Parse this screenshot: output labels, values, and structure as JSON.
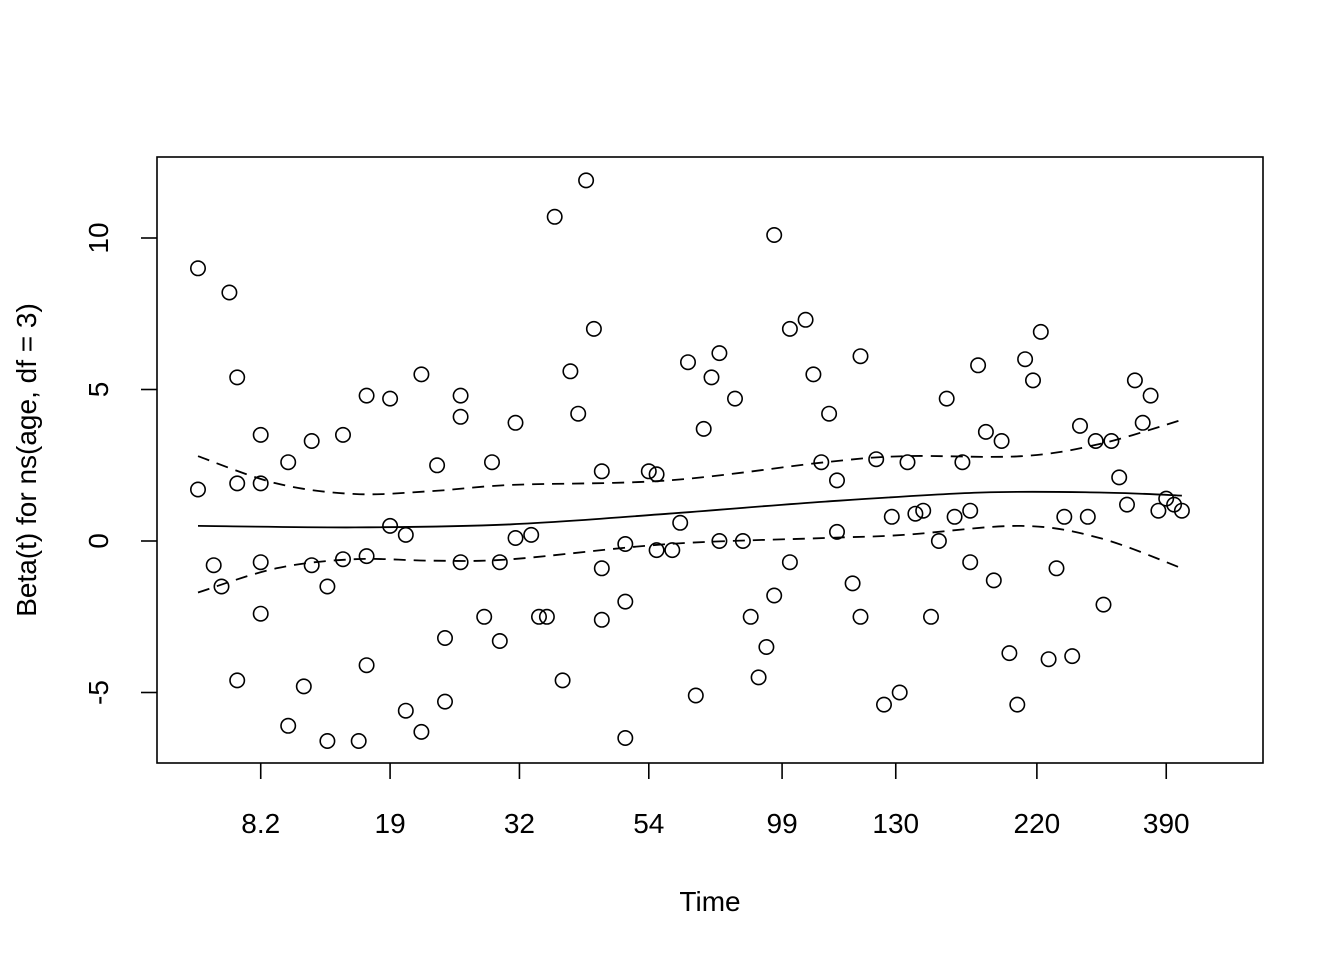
{
  "chart_data": {
    "type": "scatter",
    "title": "",
    "xlabel": "Time",
    "ylabel": "Beta(t) for ns(age, df = 3)",
    "x_scale": "transformed time (rank), labelled with original times",
    "x_tick_labels": [
      "8.2",
      "19",
      "32",
      "54",
      "99",
      "130",
      "220",
      "390"
    ],
    "y_ticks": [
      -5,
      0,
      5,
      10
    ],
    "y_tick_labels": [
      "-5",
      "0",
      "5",
      "10"
    ],
    "ylim": [
      -7.4,
      12.6
    ],
    "grid": false,
    "legend": "none",
    "points": [
      [
        1.0,
        1.7
      ],
      [
        1.0,
        9.0
      ],
      [
        1.4,
        -0.8
      ],
      [
        1.6,
        -1.5
      ],
      [
        1.8,
        8.2
      ],
      [
        2.0,
        1.9
      ],
      [
        2.0,
        5.4
      ],
      [
        2.0,
        -4.6
      ],
      [
        2.6,
        3.5
      ],
      [
        2.6,
        1.9
      ],
      [
        2.6,
        -0.7
      ],
      [
        2.6,
        -2.4
      ],
      [
        3.3,
        2.6
      ],
      [
        3.3,
        -6.1
      ],
      [
        3.7,
        -4.8
      ],
      [
        3.9,
        3.3
      ],
      [
        3.9,
        -0.8
      ],
      [
        4.3,
        -1.5
      ],
      [
        4.3,
        -6.6
      ],
      [
        4.7,
        3.5
      ],
      [
        4.7,
        -0.6
      ],
      [
        5.1,
        -6.6
      ],
      [
        5.3,
        4.8
      ],
      [
        5.3,
        -0.5
      ],
      [
        5.3,
        -4.1
      ],
      [
        5.9,
        4.7
      ],
      [
        5.9,
        0.5
      ],
      [
        6.3,
        0.2
      ],
      [
        6.3,
        -5.6
      ],
      [
        6.7,
        5.5
      ],
      [
        6.7,
        -6.3
      ],
      [
        7.1,
        2.5
      ],
      [
        7.3,
        -3.2
      ],
      [
        7.3,
        -5.3
      ],
      [
        7.7,
        4.8
      ],
      [
        7.7,
        4.1
      ],
      [
        7.7,
        -0.7
      ],
      [
        8.3,
        -2.5
      ],
      [
        8.5,
        2.6
      ],
      [
        8.7,
        -0.7
      ],
      [
        8.7,
        -3.3
      ],
      [
        9.1,
        3.9
      ],
      [
        9.1,
        0.1
      ],
      [
        9.5,
        0.2
      ],
      [
        9.7,
        -2.5
      ],
      [
        9.9,
        -2.5
      ],
      [
        10.1,
        10.7
      ],
      [
        10.3,
        -4.6
      ],
      [
        10.5,
        5.6
      ],
      [
        10.7,
        4.2
      ],
      [
        10.9,
        11.9
      ],
      [
        11.1,
        7.0
      ],
      [
        11.3,
        2.3
      ],
      [
        11.3,
        -0.9
      ],
      [
        11.3,
        -2.6
      ],
      [
        11.9,
        -0.1
      ],
      [
        11.9,
        -2.0
      ],
      [
        11.9,
        -6.5
      ],
      [
        12.5,
        2.3
      ],
      [
        12.7,
        2.2
      ],
      [
        12.7,
        -0.3
      ],
      [
        13.1,
        -0.3
      ],
      [
        13.3,
        0.6
      ],
      [
        13.5,
        5.9
      ],
      [
        13.7,
        -5.1
      ],
      [
        13.9,
        3.7
      ],
      [
        14.1,
        5.4
      ],
      [
        14.3,
        6.2
      ],
      [
        14.3,
        0.0
      ],
      [
        14.7,
        4.7
      ],
      [
        14.9,
        0.0
      ],
      [
        15.1,
        -2.5
      ],
      [
        15.3,
        -4.5
      ],
      [
        15.5,
        -3.5
      ],
      [
        15.7,
        10.1
      ],
      [
        15.7,
        -1.8
      ],
      [
        16.1,
        7.0
      ],
      [
        16.1,
        -0.7
      ],
      [
        16.5,
        7.3
      ],
      [
        16.7,
        5.5
      ],
      [
        16.9,
        2.6
      ],
      [
        17.1,
        4.2
      ],
      [
        17.3,
        2.0
      ],
      [
        17.3,
        0.3
      ],
      [
        17.7,
        -1.4
      ],
      [
        17.9,
        6.1
      ],
      [
        17.9,
        -2.5
      ],
      [
        18.3,
        2.7
      ],
      [
        18.5,
        -5.4
      ],
      [
        18.7,
        0.8
      ],
      [
        18.9,
        -5.0
      ],
      [
        19.1,
        2.6
      ],
      [
        19.3,
        0.9
      ],
      [
        19.5,
        1.0
      ],
      [
        19.7,
        -2.5
      ],
      [
        19.9,
        0.0
      ],
      [
        20.1,
        4.7
      ],
      [
        20.3,
        0.8
      ],
      [
        20.5,
        2.6
      ],
      [
        20.7,
        1.0
      ],
      [
        20.7,
        -0.7
      ],
      [
        20.9,
        5.8
      ],
      [
        21.1,
        3.6
      ],
      [
        21.3,
        -1.3
      ],
      [
        21.5,
        3.3
      ],
      [
        21.7,
        -3.7
      ],
      [
        21.9,
        -5.4
      ],
      [
        22.1,
        6.0
      ],
      [
        22.3,
        5.3
      ],
      [
        22.5,
        6.9
      ],
      [
        22.7,
        -3.9
      ],
      [
        22.9,
        -0.9
      ],
      [
        23.1,
        0.8
      ],
      [
        23.3,
        -3.8
      ],
      [
        23.5,
        3.8
      ],
      [
        23.7,
        0.8
      ],
      [
        23.9,
        3.3
      ],
      [
        24.1,
        -2.1
      ],
      [
        24.3,
        3.3
      ],
      [
        24.5,
        2.1
      ],
      [
        24.7,
        1.2
      ],
      [
        24.9,
        5.3
      ],
      [
        25.1,
        3.9
      ],
      [
        25.3,
        4.8
      ],
      [
        25.5,
        1.0
      ],
      [
        25.7,
        1.4
      ],
      [
        25.9,
        1.2
      ],
      [
        26.1,
        1.0
      ]
    ],
    "series": [
      {
        "values": [
          [
            1.0,
            0.5
          ],
          [
            5.0,
            0.45
          ],
          [
            9.0,
            0.55
          ],
          [
            13.0,
            0.9
          ],
          [
            17.0,
            1.3
          ],
          [
            21.0,
            1.6
          ],
          [
            24.0,
            1.6
          ],
          [
            26.1,
            1.5
          ]
        ]
      },
      {
        "values": [
          [
            1.0,
            2.8
          ],
          [
            3.0,
            1.9
          ],
          [
            5.0,
            1.55
          ],
          [
            7.0,
            1.65
          ],
          [
            9.0,
            1.85
          ],
          [
            13.0,
            2.0
          ],
          [
            17.0,
            2.6
          ],
          [
            19.0,
            2.8
          ],
          [
            22.0,
            2.8
          ],
          [
            24.0,
            3.2
          ],
          [
            26.1,
            4.0
          ]
        ]
      },
      {
        "values": [
          [
            1.0,
            -1.7
          ],
          [
            3.0,
            -0.9
          ],
          [
            5.0,
            -0.6
          ],
          [
            7.0,
            -0.65
          ],
          [
            9.0,
            -0.6
          ],
          [
            13.0,
            -0.1
          ],
          [
            17.0,
            0.1
          ],
          [
            19.0,
            0.2
          ],
          [
            22.0,
            0.5
          ],
          [
            24.0,
            0.1
          ],
          [
            26.1,
            -0.9
          ]
        ]
      }
    ]
  }
}
